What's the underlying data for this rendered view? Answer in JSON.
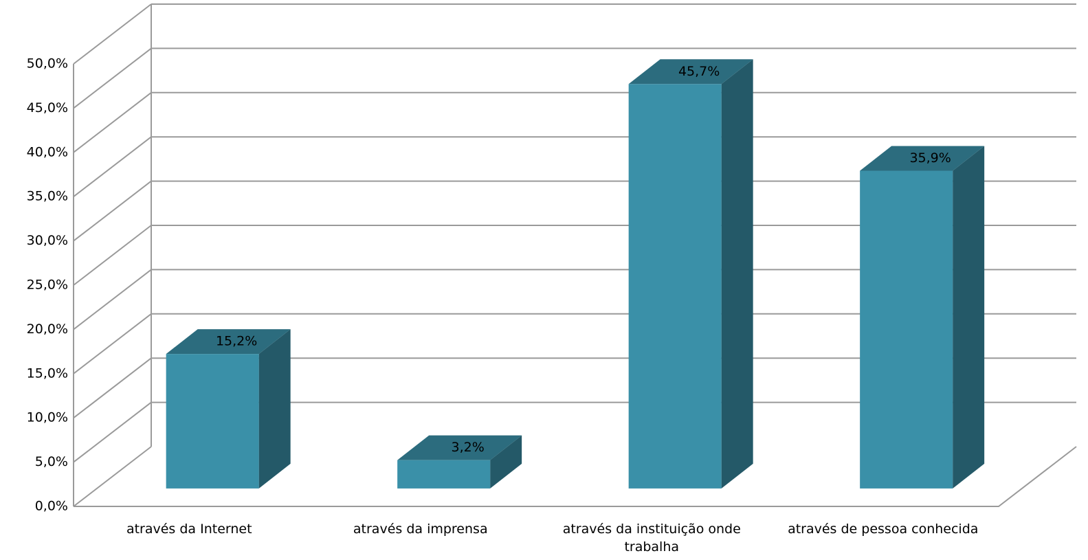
{
  "chart_data": {
    "type": "bar3d",
    "categories": [
      "através da Internet",
      "através da imprensa",
      "através da instituição onde trabalha",
      "através de pessoa conhecida"
    ],
    "values": [
      15.2,
      3.2,
      45.7,
      35.9
    ],
    "value_labels": [
      "15,2%",
      "3,2%",
      "45,7%",
      "35,9%"
    ],
    "color": "#3a90a8",
    "ylim": [
      0,
      50
    ],
    "yticks": [
      {
        "value": 0,
        "label": "0,0%"
      },
      {
        "value": 5,
        "label": "5,0%"
      },
      {
        "value": 10,
        "label": "10,0%"
      },
      {
        "value": 15,
        "label": "15,0%"
      },
      {
        "value": 20,
        "label": "20,0%"
      },
      {
        "value": 25,
        "label": "25,0%"
      },
      {
        "value": 30,
        "label": "30,0%"
      },
      {
        "value": 35,
        "label": "35,0%"
      },
      {
        "value": 40,
        "label": "40,0%"
      },
      {
        "value": 45,
        "label": "45,0%"
      },
      {
        "value": 50,
        "label": "50,0%"
      }
    ],
    "grid": true
  }
}
